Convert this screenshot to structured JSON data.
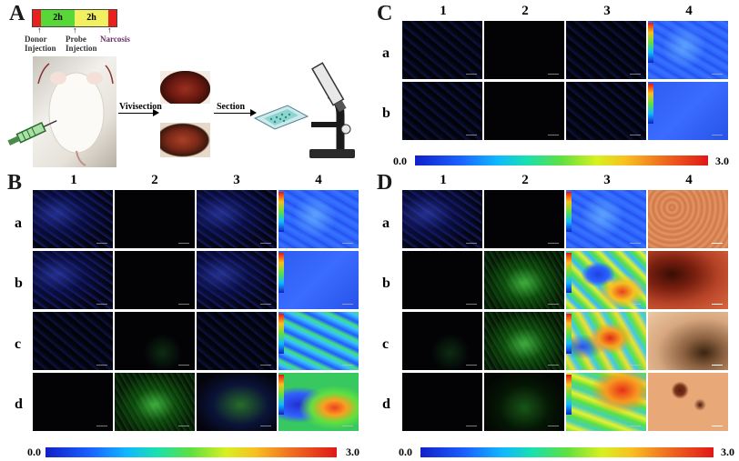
{
  "panelA": {
    "letter": "A",
    "timeline": {
      "seg1": "2h",
      "seg2": "2h"
    },
    "labels": {
      "donor": "Donor\nInjection",
      "probe": "Probe\nInjection",
      "narcosis": "Narcosis"
    },
    "vivisection": "Vivisection",
    "section": "Section"
  },
  "panelB": {
    "letter": "B",
    "cols": [
      "1",
      "2",
      "3",
      "4"
    ],
    "rows": [
      "a",
      "b",
      "c",
      "d"
    ],
    "scale_min": "0.0",
    "scale_max": "3.0"
  },
  "panelC": {
    "letter": "C",
    "cols": [
      "1",
      "2",
      "3",
      "4"
    ],
    "rows": [
      "a",
      "b"
    ],
    "scale_min": "0.0",
    "scale_max": "3.0"
  },
  "panelD": {
    "letter": "D",
    "cols": [
      "1",
      "2",
      "3",
      "4"
    ],
    "rows": [
      "a",
      "b",
      "c",
      "d"
    ],
    "scale_min": "0.0",
    "scale_max": "3.0"
  },
  "colors": {
    "blue_channel": "#1a3cc8",
    "green_channel": "#2aa82a",
    "ratio_low": "#1020c8",
    "ratio_high": "#e01818",
    "brightfield": "#d88850"
  }
}
